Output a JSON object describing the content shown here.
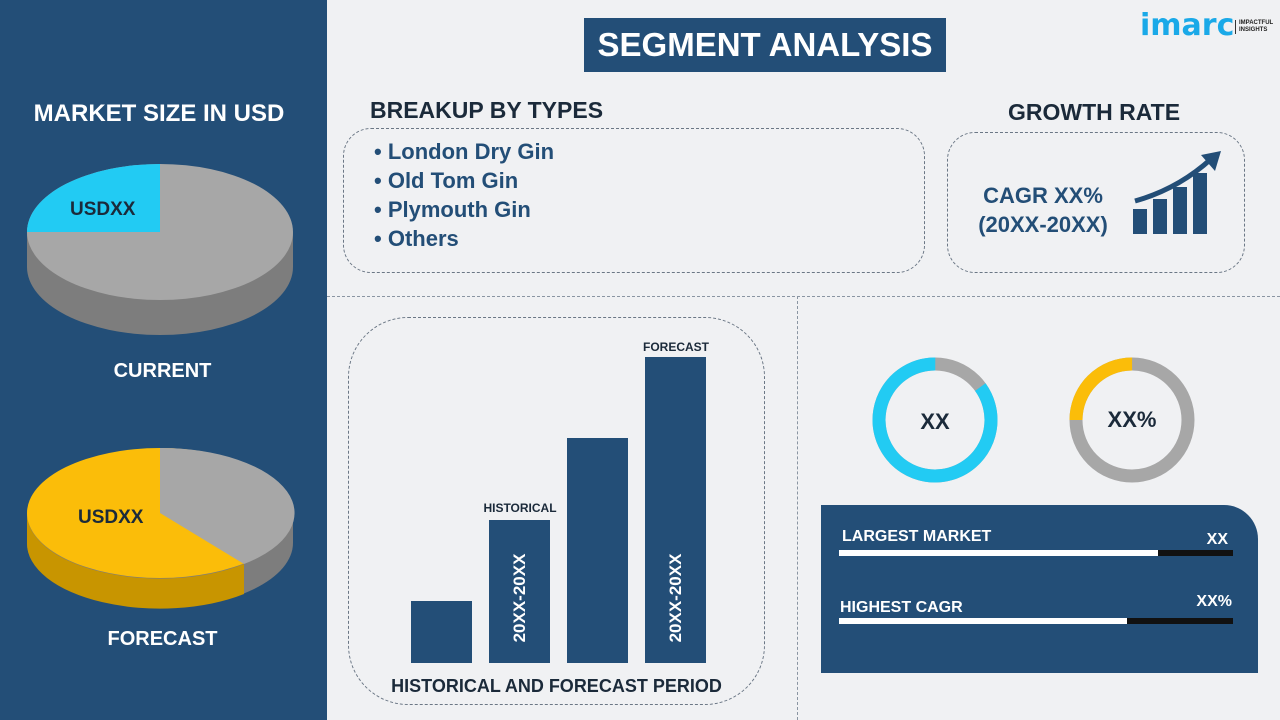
{
  "logo": {
    "brand": "imarc",
    "tagline": "IMPACTFUL INSIGHTS"
  },
  "title": "SEGMENT ANALYSIS",
  "left": {
    "heading": "MARKET SIZE IN USD",
    "current": {
      "label": "CURRENT",
      "value": "USDXX",
      "colors": [
        "#22cbf3",
        "#a7a7a7"
      ]
    },
    "forecast": {
      "label": "FORECAST",
      "value": "USDXX",
      "colors": [
        "#fbbd09",
        "#a7a7a7"
      ]
    }
  },
  "breakup": {
    "heading": "BREAKUP BY TYPES",
    "items": [
      "London Dry Gin",
      "Old Tom Gin",
      "Plymouth Gin",
      "Others"
    ]
  },
  "growth": {
    "heading": "GROWTH RATE",
    "line1": "CAGR XX%",
    "line2": "(20XX-20XX)",
    "icon": "growth-chart-arrow-icon"
  },
  "bars": {
    "caption": "HISTORICAL AND FORECAST PERIOD",
    "historical_label": "HISTORICAL",
    "forecast_label": "FORECAST",
    "historical_period": "20XX-20XX",
    "forecast_period": "20XX-20XX"
  },
  "donuts": [
    {
      "value": "XX",
      "accent": "#22cbf3",
      "share": 0.85
    },
    {
      "value": "XX%",
      "accent": "#fbbd09",
      "share": 0.25
    }
  ],
  "kpi": {
    "largest_label": "LARGEST MARKET",
    "largest_value": "XX",
    "largest_fill": 0.81,
    "cagr_label": "HIGHEST CAGR",
    "cagr_value": "XX%",
    "cagr_fill": 0.73
  },
  "colors": {
    "navy": "#234e77",
    "cyan": "#22cbf3",
    "yellow": "#fbbd09",
    "gray": "#a7a7a7"
  }
}
